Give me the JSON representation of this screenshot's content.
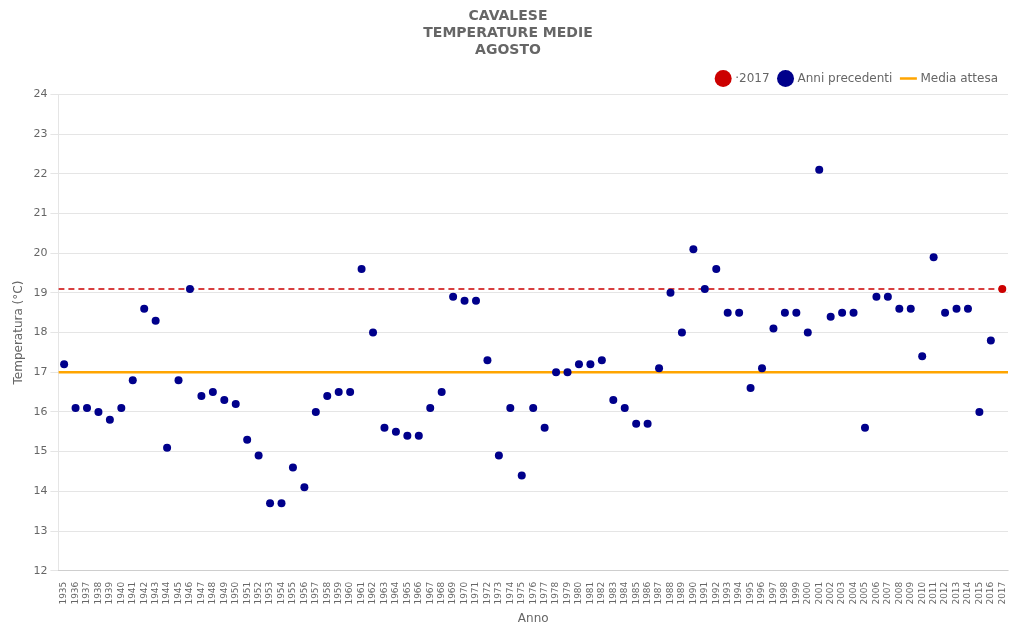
{
  "chart_data": {
    "type": "scatter",
    "title": "CAVALESE\nTEMPERATURE MEDIE\nAGOSTO",
    "x_label": "Anno",
    "y_label": "Temperatura (°C)",
    "xlim": [
      1934.5,
      2017.5
    ],
    "xticks": [
      1935,
      1936,
      1937,
      1938,
      1939,
      1940,
      1941,
      1942,
      1943,
      1944,
      1945,
      1946,
      1947,
      1948,
      1949,
      1950,
      1951,
      1952,
      1953,
      1954,
      1955,
      1956,
      1957,
      1958,
      1959,
      1960,
      1961,
      1962,
      1963,
      1964,
      1965,
      1966,
      1967,
      1968,
      1969,
      1970,
      1971,
      1972,
      1973,
      1974,
      1975,
      1976,
      1977,
      1978,
      1979,
      1980,
      1981,
      1982,
      1983,
      1984,
      1985,
      1986,
      1987,
      1988,
      1989,
      1990,
      1991,
      1992,
      1993,
      1994,
      1995,
      1996,
      1997,
      1998,
      1999,
      2000,
      2001,
      2002,
      2003,
      2004,
      2005,
      2006,
      2007,
      2008,
      2009,
      2010,
      2011,
      2012,
      2013,
      2014,
      2015,
      2016,
      2017
    ],
    "ylim": [
      12.0,
      24.0
    ],
    "yticks": [
      12.0,
      13.0,
      14.0,
      15.0,
      16.0,
      17.0,
      18.0,
      19.0,
      20.0,
      21.0,
      22.0,
      23.0,
      24.0
    ],
    "grid": "y",
    "legend": "upper right",
    "series": [
      {
        "name": "·2017",
        "type": "scatter",
        "color": "#cc0000",
        "marker": "o",
        "line_style": "dashed",
        "x": [
          2017
        ],
        "values": [
          19.1
        ]
      },
      {
        "name": "Anni precedenti",
        "type": "scatter",
        "color": "#00008B",
        "marker": "o",
        "x": [
          1935,
          1936,
          1937,
          1938,
          1939,
          1940,
          1941,
          1942,
          1943,
          1944,
          1945,
          1946,
          1947,
          1948,
          1949,
          1950,
          1951,
          1952,
          1953,
          1954,
          1955,
          1956,
          1957,
          1958,
          1959,
          1960,
          1961,
          1962,
          1963,
          1964,
          1965,
          1966,
          1967,
          1968,
          1969,
          1970,
          1971,
          1972,
          1973,
          1974,
          1975,
          1976,
          1977,
          1978,
          1979,
          1980,
          1981,
          1982,
          1983,
          1984,
          1985,
          1986,
          1987,
          1988,
          1989,
          1990,
          1991,
          1992,
          1993,
          1994,
          1995,
          1996,
          1997,
          1998,
          1999,
          2000,
          2001,
          2002,
          2003,
          2004,
          2005,
          2006,
          2007,
          2008,
          2009,
          2010,
          2011,
          2012,
          2013,
          2014,
          2015,
          2016
        ],
        "values": [
          17.2,
          16.1,
          16.1,
          16.0,
          15.8,
          16.1,
          16.8,
          18.6,
          18.3,
          15.1,
          16.8,
          19.1,
          16.4,
          16.5,
          16.3,
          16.2,
          15.3,
          14.9,
          13.7,
          13.7,
          14.6,
          14.1,
          16.0,
          16.4,
          16.5,
          16.5,
          19.6,
          18.0,
          15.6,
          15.5,
          15.4,
          15.4,
          16.1,
          16.5,
          18.9,
          18.8,
          18.8,
          17.3,
          14.9,
          16.1,
          14.4,
          16.1,
          15.6,
          17.0,
          17.0,
          17.2,
          17.2,
          17.3,
          16.3,
          16.1,
          15.7,
          15.7,
          17.1,
          19.0,
          18.0,
          20.1,
          19.1,
          19.6,
          18.5,
          18.5,
          16.6,
          17.1,
          18.1,
          18.5,
          18.5,
          18.0,
          22.1,
          18.4,
          18.5,
          18.5,
          15.6,
          18.9,
          18.9,
          18.6,
          18.6,
          17.4,
          19.9,
          18.5,
          18.6,
          18.6,
          16.0,
          17.8
        ]
      },
      {
        "name": "Media attesa",
        "type": "hline",
        "color": "#FFA500",
        "line_style": "solid",
        "values": [
          17.0
        ]
      }
    ]
  }
}
